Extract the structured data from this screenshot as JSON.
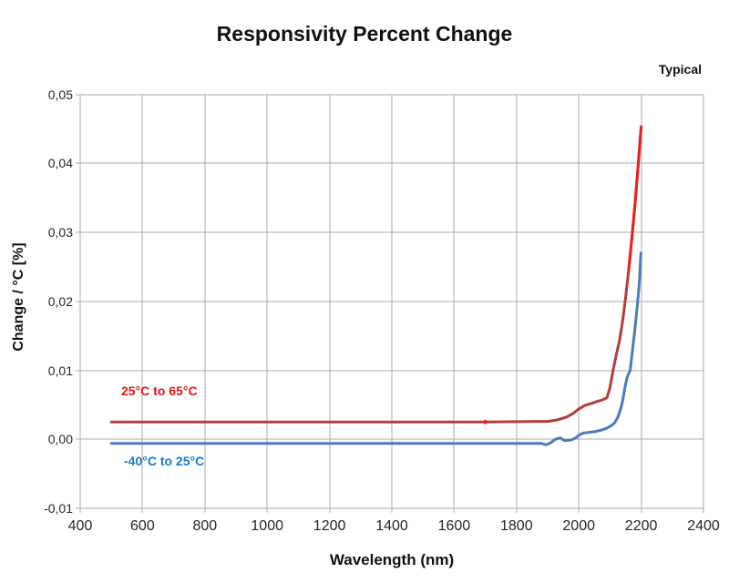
{
  "title": "Responsivity Percent Change",
  "corner_note": "Typical",
  "chart_data": {
    "type": "line",
    "title": "Responsivity Percent Change",
    "xlabel": "Wavelength (nm)",
    "ylabel": "Change / °C [%]",
    "xlim": [
      400,
      2400
    ],
    "ylim": [
      -0.01,
      0.05
    ],
    "grid": true,
    "legend_position": "inline-labels-on-plot",
    "x_ticks": [
      400,
      600,
      800,
      1000,
      1200,
      1400,
      1600,
      1800,
      2000,
      2200,
      2400
    ],
    "x_tick_labels": [
      "400",
      "600",
      "800",
      "1000",
      "1200",
      "1400",
      "1600",
      "1800",
      "2000",
      "2200",
      "2400"
    ],
    "y_ticks": [
      0.05,
      0.04,
      0.03,
      0.02,
      0.01,
      0.0,
      -0.01
    ],
    "y_tick_labels": [
      "0,05",
      "0,04",
      "0,03",
      "0,02",
      "0,01",
      "0,00",
      "-0,01"
    ],
    "grid_color": "#ABABAB",
    "series": [
      {
        "name": "25°C to 65°C",
        "color": "#B43C3C",
        "tip_color": "#EC1E1E",
        "tip_from_x": 2160,
        "label_color": "#E8141C",
        "points": [
          [
            500,
            0.0025
          ],
          [
            700,
            0.0025
          ],
          [
            900,
            0.0025
          ],
          [
            1100,
            0.0025
          ],
          [
            1300,
            0.0025
          ],
          [
            1500,
            0.0025
          ],
          [
            1700,
            0.0025
          ],
          [
            1800,
            0.00255
          ],
          [
            1870,
            0.0026
          ],
          [
            1900,
            0.0026
          ],
          [
            1930,
            0.0028
          ],
          [
            1960,
            0.0032
          ],
          [
            1980,
            0.0037
          ],
          [
            2000,
            0.0044
          ],
          [
            2020,
            0.0049
          ],
          [
            2040,
            0.0052
          ],
          [
            2060,
            0.0055
          ],
          [
            2075,
            0.0057
          ],
          [
            2090,
            0.006
          ],
          [
            2100,
            0.0075
          ],
          [
            2110,
            0.01
          ],
          [
            2120,
            0.0122
          ],
          [
            2130,
            0.0142
          ],
          [
            2140,
            0.017
          ],
          [
            2150,
            0.0205
          ],
          [
            2160,
            0.0245
          ],
          [
            2170,
            0.029
          ],
          [
            2180,
            0.034
          ],
          [
            2190,
            0.0395
          ],
          [
            2200,
            0.0453
          ]
        ],
        "marker_point": [
          1700,
          0.0025
        ],
        "marker_color": "#FF1A1A"
      },
      {
        "name": "-40°C to 25°C",
        "color": "#4A7CB8",
        "label_color": "#187CC5",
        "points": [
          [
            500,
            -0.0006
          ],
          [
            700,
            -0.0006
          ],
          [
            900,
            -0.0006
          ],
          [
            1100,
            -0.0006
          ],
          [
            1300,
            -0.0006
          ],
          [
            1500,
            -0.0006
          ],
          [
            1700,
            -0.0006
          ],
          [
            1800,
            -0.0006
          ],
          [
            1880,
            -0.0006
          ],
          [
            1895,
            -0.0008
          ],
          [
            1910,
            -0.0005
          ],
          [
            1925,
            0.0
          ],
          [
            1940,
            0.0002
          ],
          [
            1955,
            -0.0002
          ],
          [
            1975,
            -0.0001
          ],
          [
            1990,
            0.0002
          ],
          [
            2000,
            0.0006
          ],
          [
            2015,
            0.0009
          ],
          [
            2030,
            0.001
          ],
          [
            2050,
            0.0011
          ],
          [
            2070,
            0.0013
          ],
          [
            2090,
            0.0016
          ],
          [
            2105,
            0.002
          ],
          [
            2115,
            0.0024
          ],
          [
            2125,
            0.0032
          ],
          [
            2133,
            0.0042
          ],
          [
            2141,
            0.0056
          ],
          [
            2148,
            0.0075
          ],
          [
            2155,
            0.009
          ],
          [
            2165,
            0.01
          ],
          [
            2172,
            0.0128
          ],
          [
            2180,
            0.016
          ],
          [
            2188,
            0.0195
          ],
          [
            2194,
            0.0225
          ],
          [
            2199,
            0.027
          ]
        ]
      }
    ],
    "series_label_positions": [
      {
        "left": 133,
        "top": 421
      },
      {
        "left": 136,
        "top": 498
      }
    ]
  }
}
